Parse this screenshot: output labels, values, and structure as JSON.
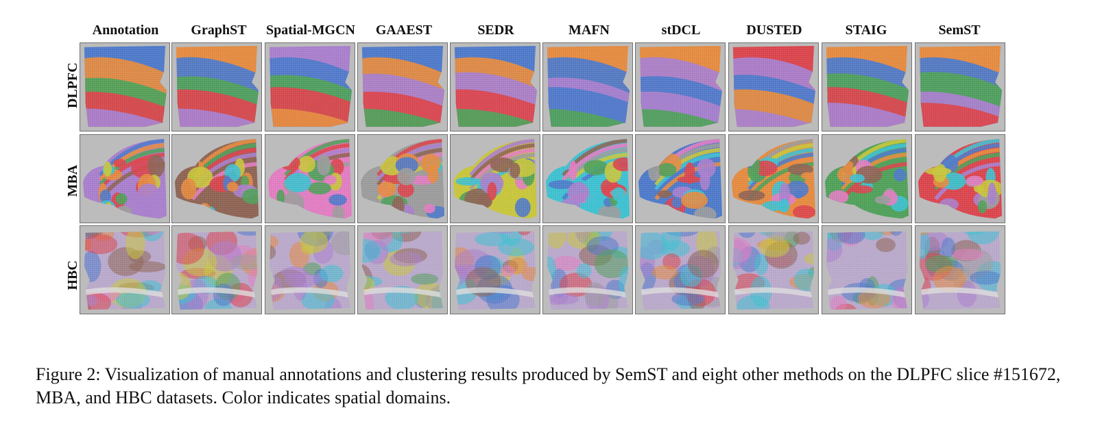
{
  "figure": {
    "columns": [
      "Annotation",
      "GraphST",
      "Spatial-MGCN",
      "GAAEST",
      "SEDR",
      "MAFN",
      "stDCL",
      "DUSTED",
      "STAIG",
      "SemST"
    ],
    "rows": [
      "DLPFC",
      "MBA",
      "HBC"
    ]
  },
  "caption": "Figure 2: Visualization of manual annotations and clustering results produced by SemST and eight other methods on the DLPFC slice #151672, MBA, and HBC datasets. Color indicates spatial domains.",
  "colors": {
    "domain_palette": [
      "#4c78c8",
      "#e3893e",
      "#4e9f58",
      "#d9434b",
      "#a77dcb",
      "#8c6252",
      "#e07bc0",
      "#9a9a9a",
      "#c6c43a",
      "#3cbfcf"
    ],
    "panel_background": "#bcbcbc"
  }
}
